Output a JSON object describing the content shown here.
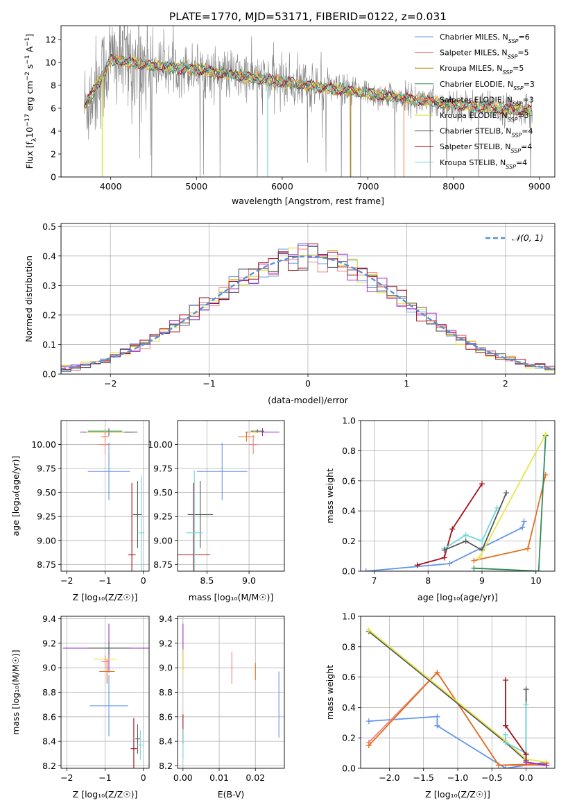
{
  "figure_title": "PLATE=1770, MJD=53171, FIBERID=0122, z=0.031",
  "colors": {
    "chabrier_miles": "#6495ED",
    "salpeter_miles": "#F08080",
    "kroupa_miles": "#B8860B",
    "chabrier_elodie": "#2E8B57",
    "salpeter_elodie": "#FF7F50",
    "kroupa_elodie": "#DDDD22",
    "chabrier_stelib": "#555555",
    "salpeter_stelib": "#A50F15",
    "kroupa_stelib": "#6FD7DC",
    "purple": "#9932CC",
    "orange": "#E07020",
    "yellow": "#E6E645",
    "gray": "#808080",
    "normal_curve": "#5B8FD6",
    "grid": "#b0b0b0"
  },
  "chart_data": [
    {
      "id": "spectrum",
      "type": "line",
      "title": "PLATE=1770, MJD=53171, FIBERID=0122, z=0.031",
      "xlabel": "wavelength [Angstrom, rest frame]",
      "ylabel_parts": [
        "Flux [f",
        "λ",
        "10",
        "−17",
        " erg cm",
        "−2",
        " s",
        "−1",
        " A",
        "−1",
        "]"
      ],
      "xlim": [
        3420,
        9180
      ],
      "ylim": [
        0,
        13.2
      ],
      "xticks": [
        4000,
        5000,
        6000,
        7000,
        8000,
        9000
      ],
      "yticks": [
        0,
        2,
        4,
        6,
        8,
        10,
        12
      ],
      "grid": false,
      "legend_position": "top-right",
      "data_profile": {
        "wavelength": [
          3700,
          3800,
          3900,
          4000,
          4200,
          4500,
          5000,
          5500,
          6000,
          6500,
          7000,
          7500,
          8000,
          8500,
          8900
        ],
        "flux": [
          6.2,
          7.5,
          8.8,
          10.3,
          10.0,
          9.7,
          9.4,
          8.8,
          8.3,
          7.8,
          7.3,
          6.8,
          6.3,
          6.0,
          5.8
        ]
      },
      "noise_amplitude": 1.1,
      "series": [
        {
          "name": "Chabrier MILES",
          "n_ssp": "6",
          "color_key": "chabrier_miles"
        },
        {
          "name": "Salpeter MILES",
          "n_ssp": "5",
          "color_key": "salpeter_miles"
        },
        {
          "name": "Kroupa MILES",
          "n_ssp": "5",
          "color_key": "kroupa_miles"
        },
        {
          "name": "Chabrier ELODIE",
          "n_ssp": "3",
          "color_key": "chabrier_elodie"
        },
        {
          "name": "Salpeter ELODIE",
          "n_ssp": "3",
          "color_key": "salpeter_elodie"
        },
        {
          "name": "Kroupa ELODIE",
          "n_ssp": "3",
          "color_key": "kroupa_elodie"
        },
        {
          "name": "Chabrier STELIB",
          "n_ssp": "4",
          "color_key": "chabrier_stelib"
        },
        {
          "name": "Salpeter STELIB",
          "n_ssp": "4",
          "color_key": "salpeter_stelib"
        },
        {
          "name": "Kroupa STELIB",
          "n_ssp": "4",
          "color_key": "kroupa_stelib"
        }
      ]
    },
    {
      "id": "residuals",
      "type": "line",
      "xlabel": "(data-model)/error",
      "ylabel": "Normed distribution",
      "xlim": [
        -2.5,
        2.5
      ],
      "ylim": [
        0,
        0.51
      ],
      "xticks": [
        -2,
        -1,
        0,
        1,
        2
      ],
      "xtick_labels": [
        "−2",
        "−1",
        "0",
        "1",
        "2"
      ],
      "yticks": [
        0.0,
        0.1,
        0.2,
        0.3,
        0.4,
        0.5
      ],
      "grid": true,
      "legend_position": "top-right",
      "legend_label": "𝒩(0, 1)",
      "bin_width": 0.1,
      "histogram_colors": [
        "chabrier_miles",
        "salpeter_miles",
        "kroupa_elodie",
        "purple",
        "salpeter_stelib",
        "chabrier_stelib"
      ]
    },
    {
      "id": "age_vs_Z",
      "type": "scatter",
      "xlabel": "Z [log₁₀(Z/Z☉)]",
      "ylabel": "age  [log₁₀(age/yr)]",
      "xlim": [
        -2.15,
        0.15
      ],
      "ylim": [
        8.68,
        10.25
      ],
      "xticks": [
        -2,
        -1,
        0
      ],
      "xtick_labels": [
        "−2",
        "−1",
        "0"
      ],
      "yticks": [
        8.75,
        9.0,
        9.25,
        9.5,
        9.75,
        10.0
      ],
      "ytick_labels": [
        "8.75",
        "9.00",
        "9.25",
        "9.50",
        "9.75",
        "10.00"
      ],
      "grid": true,
      "points": [
        {
          "x": -0.9,
          "xerr": 0.75,
          "y": 10.13,
          "yerr": 0.04,
          "color_key": "purple"
        },
        {
          "x": -0.9,
          "xerr": 0.65,
          "y": 10.13,
          "yerr": 0.02,
          "color_key": "chabrier_stelib"
        },
        {
          "x": -1.0,
          "xerr": 0.45,
          "y": 10.14,
          "yerr": 0.02,
          "color_key": "chabrier_elodie"
        },
        {
          "x": -1.0,
          "xerr": 0.5,
          "y": 10.13,
          "yerr": 0.02,
          "color_key": "yellow"
        },
        {
          "x": -1.0,
          "xerr": 0.1,
          "y": 10.08,
          "yerr": 0.05,
          "color_key": "orange"
        },
        {
          "x": -1.0,
          "xerr": 0.15,
          "y": 10.0,
          "yerr": 0.1,
          "color_key": "salpeter_miles"
        },
        {
          "x": -0.9,
          "xerr": 0.55,
          "y": 9.72,
          "yerr": 0.3,
          "color_key": "chabrier_miles"
        },
        {
          "x": -0.3,
          "xerr": 0.1,
          "y": 8.85,
          "yerr": 0.75,
          "color_key": "salpeter_stelib"
        },
        {
          "x": -0.15,
          "xerr": 0.12,
          "y": 9.27,
          "yerr": 0.35,
          "color_key": "chabrier_stelib"
        },
        {
          "x": -0.05,
          "xerr": 0.08,
          "y": 9.08,
          "yerr": 0.6,
          "color_key": "kroupa_stelib"
        }
      ]
    },
    {
      "id": "age_vs_mass",
      "type": "scatter",
      "xlabel": "mass [log₁₀(M/M☉)]",
      "xlim": [
        8.15,
        9.42
      ],
      "ylim": [
        8.68,
        10.25
      ],
      "xticks": [
        8.5,
        9.0
      ],
      "xtick_labels": [
        "8.5",
        "9.0"
      ],
      "yticks": [
        8.75,
        9.0,
        9.25,
        9.5,
        9.75,
        10.0
      ],
      "ytick_labels": [
        "8.75",
        "9.00",
        "9.25",
        "9.50",
        "9.75",
        "10.00"
      ],
      "grid": true,
      "points": [
        {
          "x": 9.16,
          "xerr": 0.2,
          "y": 10.13,
          "yerr": 0.04,
          "color_key": "purple"
        },
        {
          "x": 9.1,
          "xerr": 0.08,
          "y": 10.14,
          "yerr": 0.02,
          "color_key": "chabrier_stelib"
        },
        {
          "x": 9.07,
          "xerr": 0.08,
          "y": 10.13,
          "yerr": 0.02,
          "color_key": "yellow"
        },
        {
          "x": 8.97,
          "xerr": 0.1,
          "y": 10.08,
          "yerr": 0.05,
          "color_key": "orange"
        },
        {
          "x": 9.05,
          "xerr": 0.05,
          "y": 10.0,
          "yerr": 0.1,
          "color_key": "salpeter_miles"
        },
        {
          "x": 8.68,
          "xerr": 0.3,
          "y": 9.72,
          "yerr": 0.3,
          "color_key": "chabrier_miles"
        },
        {
          "x": 8.34,
          "xerr": 0.2,
          "y": 8.85,
          "yerr": 0.75,
          "color_key": "salpeter_stelib"
        },
        {
          "x": 8.42,
          "xerr": 0.15,
          "y": 9.27,
          "yerr": 0.35,
          "color_key": "chabrier_stelib"
        },
        {
          "x": 8.35,
          "xerr": 0.1,
          "y": 9.08,
          "yerr": 0.65,
          "color_key": "kroupa_stelib"
        }
      ]
    },
    {
      "id": "weight_vs_age",
      "type": "line",
      "xlabel": "age  [log₁₀(age/yr)]",
      "ylabel": "mass weight",
      "xlim": [
        6.75,
        10.35
      ],
      "ylim": [
        0,
        1.0
      ],
      "xticks": [
        7,
        8,
        9,
        10
      ],
      "yticks": [
        0.0,
        0.2,
        0.4,
        0.6,
        0.8,
        1.0
      ],
      "grid": true,
      "series": [
        {
          "color_key": "chabrier_miles",
          "x": [
            6.85,
            8.4,
            9.75,
            9.78
          ],
          "y": [
            0.0,
            0.05,
            0.29,
            0.33
          ]
        },
        {
          "color_key": "salpeter_stelib",
          "x": [
            7.8,
            8.3,
            8.45,
            9.0
          ],
          "y": [
            0.04,
            0.09,
            0.28,
            0.58
          ]
        },
        {
          "color_key": "kroupa_stelib",
          "x": [
            8.3,
            8.7,
            9.0,
            9.28
          ],
          "y": [
            0.15,
            0.24,
            0.2,
            0.42
          ]
        },
        {
          "color_key": "chabrier_stelib",
          "x": [
            8.3,
            8.7,
            9.0,
            9.45
          ],
          "y": [
            0.14,
            0.2,
            0.14,
            0.52
          ]
        },
        {
          "color_key": "orange",
          "x": [
            8.85,
            9.85,
            10.18
          ],
          "y": [
            0.07,
            0.15,
            0.64
          ]
        },
        {
          "color_key": "chabrier_elodie",
          "x": [
            8.85,
            10.05,
            10.18
          ],
          "y": [
            0.02,
            0.0,
            0.9
          ]
        },
        {
          "color_key": "yellow",
          "x": [
            8.95,
            10.18
          ],
          "y": [
            0.09,
            0.91
          ]
        }
      ]
    },
    {
      "id": "mass_vs_Z",
      "type": "scatter",
      "xlabel": "Z [log₁₀(Z/Z☉)]",
      "ylabel": "mass [log₁₀(M/M☉)]",
      "xlim": [
        -2.15,
        0.15
      ],
      "ylim": [
        8.18,
        9.42
      ],
      "xticks": [
        -2,
        -1,
        0
      ],
      "xtick_labels": [
        "−2",
        "−1",
        "0"
      ],
      "yticks": [
        8.2,
        8.4,
        8.6,
        8.8,
        9.0,
        9.2,
        9.4
      ],
      "grid": true,
      "points": [
        {
          "x": -0.9,
          "xerr": 1.2,
          "y": 9.16,
          "yerr": 0.2,
          "color_key": "purple"
        },
        {
          "x": -0.9,
          "xerr": 0.55,
          "y": 9.16,
          "yerr": 0.05,
          "color_key": "chabrier_stelib"
        },
        {
          "x": -1.0,
          "xerr": 0.3,
          "y": 9.07,
          "yerr": 0.03,
          "color_key": "yellow"
        },
        {
          "x": -1.0,
          "xerr": 0.1,
          "y": 9.05,
          "yerr": 0.05,
          "color_key": "salpeter_miles"
        },
        {
          "x": -0.95,
          "xerr": 0.2,
          "y": 8.97,
          "yerr": 0.1,
          "color_key": "orange"
        },
        {
          "x": -0.9,
          "xerr": 0.5,
          "y": 8.69,
          "yerr": 0.25,
          "color_key": "chabrier_miles"
        },
        {
          "x": -0.25,
          "xerr": 0.08,
          "y": 8.34,
          "yerr": 0.25,
          "color_key": "salpeter_stelib"
        },
        {
          "x": -0.15,
          "xerr": 0.06,
          "y": 8.42,
          "yerr": 0.12,
          "color_key": "chabrier_stelib"
        },
        {
          "x": -0.08,
          "xerr": 0.08,
          "y": 8.37,
          "yerr": 0.12,
          "color_key": "kroupa_stelib"
        }
      ]
    },
    {
      "id": "mass_vs_ebv",
      "type": "scatter",
      "xlabel": "E(B-V)",
      "xlim": [
        -0.0015,
        0.028
      ],
      "ylim": [
        8.18,
        9.42
      ],
      "xticks": [
        0.0,
        0.01,
        0.02
      ],
      "xtick_labels": [
        "0.00",
        "0.01",
        "0.02"
      ],
      "yticks": [
        8.2,
        8.4,
        8.6,
        8.8,
        9.0,
        9.2,
        9.4
      ],
      "grid": true,
      "points": [
        {
          "x": 0.0,
          "y": 9.17,
          "yerr": 0.19,
          "color_key": "purple"
        },
        {
          "x": 0.0,
          "y": 9.05,
          "yerr": 0.1,
          "color_key": "yellow"
        },
        {
          "x": 0.0,
          "y": 8.5,
          "yerr": 0.12,
          "color_key": "salpeter_stelib"
        },
        {
          "x": 0.0,
          "y": 8.38,
          "yerr": 0.12,
          "color_key": "kroupa_stelib"
        },
        {
          "x": 0.0135,
          "y": 9.0,
          "yerr": 0.13,
          "color_key": "salpeter_miles"
        },
        {
          "x": 0.02,
          "y": 8.97,
          "yerr": 0.07,
          "color_key": "orange"
        },
        {
          "x": 0.0265,
          "y": 8.7,
          "yerr": 0.27,
          "color_key": "chabrier_miles"
        }
      ]
    },
    {
      "id": "weight_vs_Z",
      "type": "line",
      "xlabel": "Z [log₁₀(Z/Z☉)]",
      "ylabel": "mass weight",
      "xlim": [
        -2.42,
        0.42
      ],
      "ylim": [
        0,
        1.0
      ],
      "xticks": [
        -2.0,
        -1.5,
        -1.0,
        -0.5,
        0.0
      ],
      "xtick_labels": [
        "−2.0",
        "−1.5",
        "−1.0",
        "−0.5",
        "0.0"
      ],
      "yticks": [
        0.0,
        0.2,
        0.4,
        0.6,
        0.8,
        1.0
      ],
      "grid": true,
      "series": [
        {
          "color_key": "chabrier_miles",
          "x": [
            -2.3,
            -1.3,
            -1.3,
            -0.3,
            0.3
          ],
          "y": [
            0.31,
            0.34,
            0.28,
            0.0,
            0.04
          ]
        },
        {
          "color_key": "salpeter_miles",
          "x": [
            -2.3,
            -1.3,
            -0.4,
            0.3
          ],
          "y": [
            0.17,
            0.63,
            0.02,
            0.02
          ]
        },
        {
          "color_key": "orange",
          "x": [
            -2.3,
            -1.3,
            -0.4,
            0.3
          ],
          "y": [
            0.15,
            0.63,
            0.02,
            0.03
          ]
        },
        {
          "color_key": "chabrier_stelib",
          "x": [
            -2.3,
            -0.3,
            0.0,
            0.0
          ],
          "y": [
            0.9,
            0.17,
            0.05,
            0.52
          ]
        },
        {
          "color_key": "yellow",
          "x": [
            -2.3,
            -0.3,
            0.0,
            0.3
          ],
          "y": [
            0.91,
            0.18,
            0.06,
            0.04
          ]
        },
        {
          "color_key": "kroupa_stelib",
          "x": [
            -0.3,
            -0.3,
            0.0,
            0.0
          ],
          "y": [
            0.22,
            0.17,
            0.1,
            0.42
          ]
        },
        {
          "color_key": "salpeter_stelib",
          "x": [
            -0.3,
            -0.3,
            0.0,
            0.0,
            0.3
          ],
          "y": [
            0.58,
            0.28,
            0.09,
            0.04,
            0.02
          ]
        },
        {
          "color_key": "purple",
          "x": [
            0.0,
            0.3
          ],
          "y": [
            0.04,
            0.02
          ]
        }
      ]
    }
  ]
}
